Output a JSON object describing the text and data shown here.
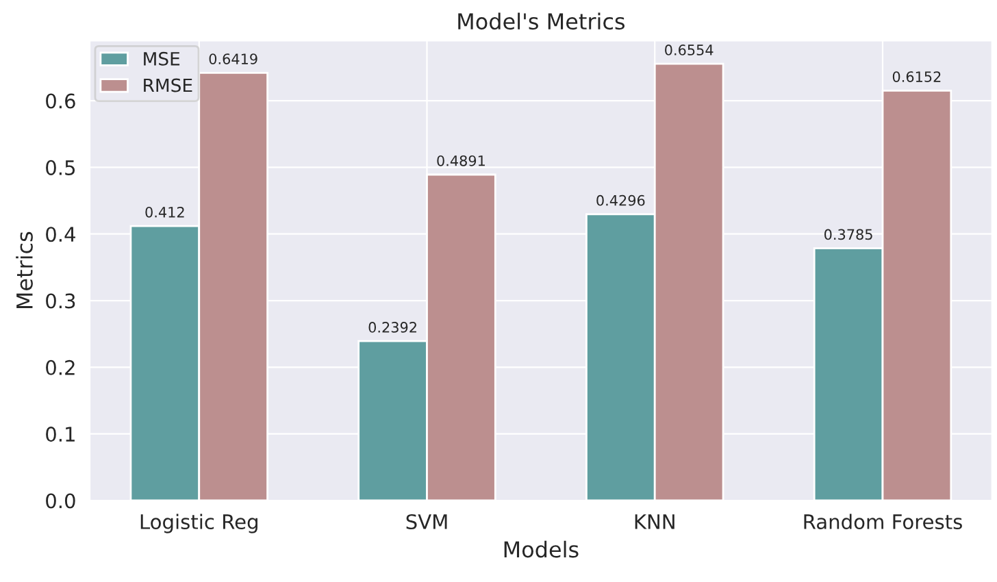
{
  "chart_data": {
    "type": "bar",
    "title": "Model's Metrics",
    "xlabel": "Models",
    "ylabel": "Metrics",
    "categories": [
      "Logistic Reg",
      "SVM",
      "KNN",
      "Random Forests"
    ],
    "series": [
      {
        "name": "MSE",
        "color": "#5f9ea0",
        "values": [
          0.412,
          0.2392,
          0.4296,
          0.3785
        ]
      },
      {
        "name": "RMSE",
        "color": "#bc8f8f",
        "values": [
          0.6419,
          0.4891,
          0.6554,
          0.6152
        ]
      }
    ],
    "ylim": [
      0,
      0.69
    ],
    "yticks": [
      {
        "value": 0,
        "label": "0.0"
      },
      0.1,
      0.2,
      0.3,
      0.4,
      0.5,
      0.6
    ],
    "data_labels": true,
    "grid": true,
    "legend": "top left"
  }
}
